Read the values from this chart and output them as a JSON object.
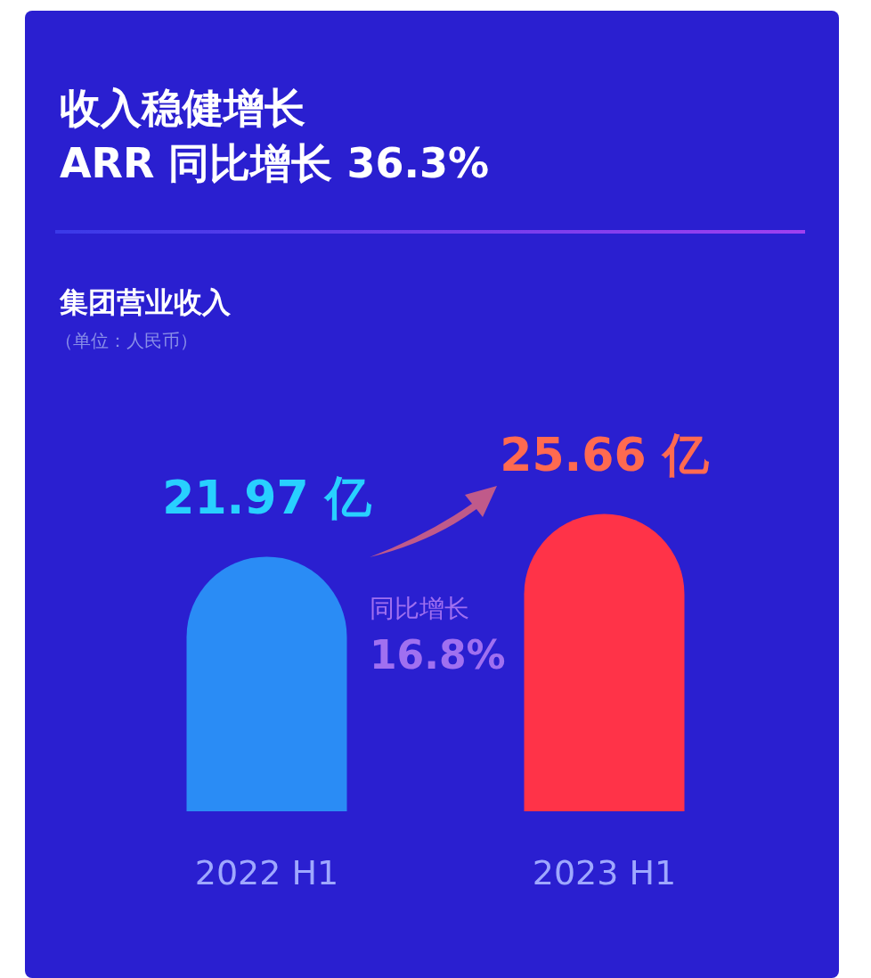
{
  "chart_data": {
    "type": "bar",
    "title": "收入稳健增长\nARR 同比增长 36.3%",
    "subtitle": "集团营业收入",
    "categories": [
      "2022 H1",
      "2023 H1"
    ],
    "values": [
      21.97,
      25.66
    ],
    "colors": [
      "#2a8cf5",
      "#ff3348"
    ],
    "value_labels": [
      "21.97 亿",
      "25.66 亿"
    ],
    "annotations": [
      "（单位：人民币）",
      "同比增长",
      "16.8%"
    ]
  }
}
